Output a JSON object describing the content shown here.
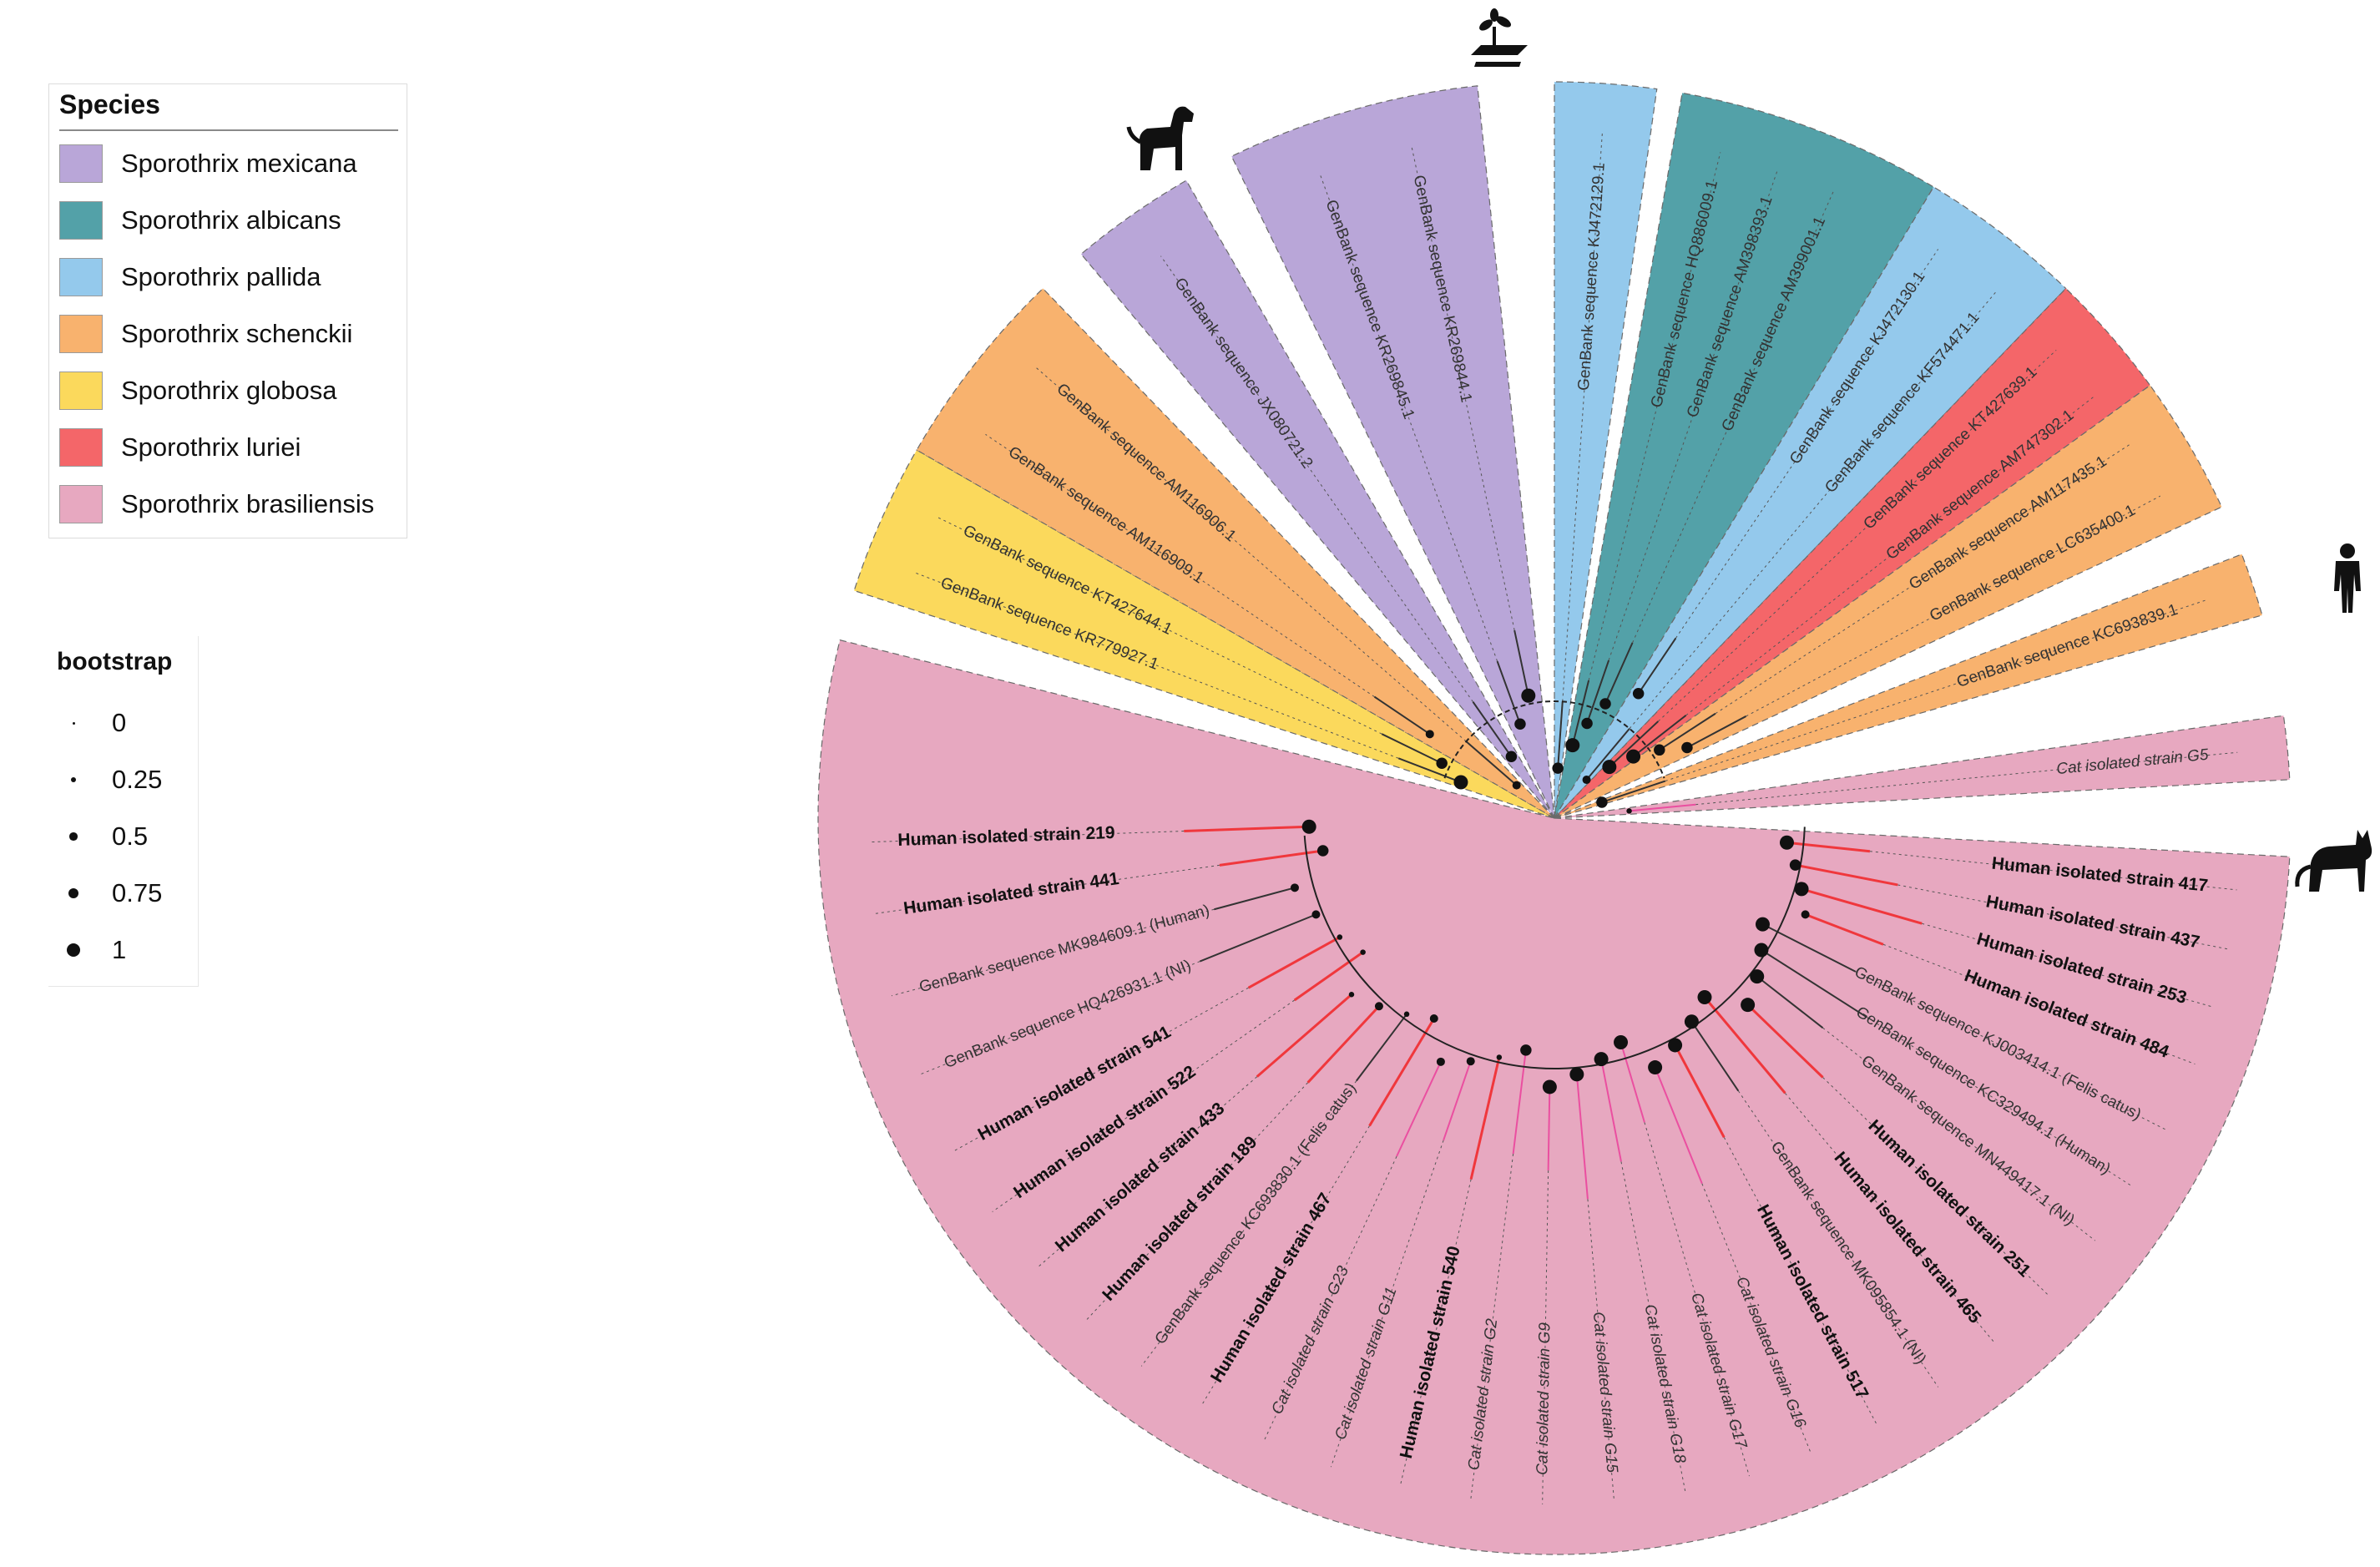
{
  "legends": {
    "species_title": "Species",
    "species": [
      {
        "label": "Sporothrix mexicana",
        "color": "#b9a6d8"
      },
      {
        "label": "Sporothrix albicans",
        "color": "#53a1a8"
      },
      {
        "label": "Sporothrix pallida",
        "color": "#94c9ec"
      },
      {
        "label": "Sporothrix schenckii",
        "color": "#f8b26e"
      },
      {
        "label": "Sporothrix globosa",
        "color": "#fbd95c"
      },
      {
        "label": "Sporothrix luriei",
        "color": "#f46669"
      },
      {
        "label": "Sporothrix brasiliensis",
        "color": "#e7a8c0"
      }
    ],
    "bootstrap_title": "bootstrap",
    "bootstrap": [
      {
        "label": "0",
        "value": 0
      },
      {
        "label": "0.25",
        "value": 0.25
      },
      {
        "label": "0.5",
        "value": 0.5
      },
      {
        "label": "0.75",
        "value": 0.75
      },
      {
        "label": "1",
        "value": 1
      }
    ]
  },
  "host_icons": [
    "plant-icon",
    "dog-icon",
    "human-icon",
    "cat-icon"
  ],
  "tree": {
    "sectors": [
      {
        "species": "Sporothrix pallida",
        "color": "#94c9ec",
        "from": -90,
        "to": -82
      },
      {
        "species": "Sporothrix albicans",
        "color": "#53a1a8",
        "from": -80,
        "to": -59
      },
      {
        "species": "Sporothrix pallida",
        "color": "#94c9ec",
        "from": -59,
        "to": -46
      },
      {
        "species": "Sporothrix luriei",
        "color": "#f46669",
        "from": -46,
        "to": -36
      },
      {
        "species": "Sporothrix schenckii",
        "color": "#f8b26e",
        "from": -36,
        "to": -25
      },
      {
        "species": "Sporothrix schenckii",
        "color": "#f8b26e",
        "from": -21,
        "to": -16
      },
      {
        "species": "Sporothrix brasiliensis",
        "color": "#e7a8c0",
        "from": -8,
        "to": -3
      },
      {
        "species": "Sporothrix brasiliensis",
        "color": "#e7a8c0",
        "from": 3,
        "to": 194
      },
      {
        "species": "Sporothrix globosa",
        "color": "#fbd95c",
        "from": 198,
        "to": 210
      },
      {
        "species": "Sporothrix schenckii",
        "color": "#f8b26e",
        "from": 210,
        "to": 226
      },
      {
        "species": "Sporothrix mexicana",
        "color": "#b9a6d8",
        "from": 230,
        "to": 240
      },
      {
        "species": "Sporothrix mexicana",
        "color": "#b9a6d8",
        "from": 244,
        "to": 264
      }
    ],
    "tips": [
      {
        "label": "GenBank sequence KJ472129.1",
        "angle": -86,
        "color": "#333333",
        "bold": false,
        "italic": false,
        "bootstrap": 0.75
      },
      {
        "label": "GenBank sequence HQ886009.1",
        "angle": -76,
        "color": "#333333",
        "bold": false,
        "italic": false,
        "bootstrap": 1
      },
      {
        "label": "GenBank sequence AM398393.1",
        "angle": -71,
        "color": "#333333",
        "bold": false,
        "italic": false,
        "bootstrap": 0.75
      },
      {
        "label": "GenBank sequence AM399001.1",
        "angle": -66,
        "color": "#333333",
        "bold": false,
        "italic": false,
        "bootstrap": 0.75
      },
      {
        "label": "GenBank sequence KJ472130.1",
        "angle": -56,
        "color": "#333333",
        "bold": false,
        "italic": false,
        "bootstrap": 0.75
      },
      {
        "label": "GenBank sequence KF574471.1",
        "angle": -50,
        "color": "#333333",
        "bold": false,
        "italic": false,
        "bootstrap": 0.5
      },
      {
        "label": "GenBank sequence KT427639.1",
        "angle": -43,
        "color": "#333333",
        "bold": false,
        "italic": false,
        "bootstrap": 1
      },
      {
        "label": "GenBank sequence AM747302.1",
        "angle": -38,
        "color": "#333333",
        "bold": false,
        "italic": false,
        "bootstrap": 1
      },
      {
        "label": "GenBank sequence AM117435.1",
        "angle": -33,
        "color": "#333333",
        "bold": false,
        "italic": false,
        "bootstrap": 0.75
      },
      {
        "label": "GenBank sequence LC635400.1",
        "angle": -28,
        "color": "#333333",
        "bold": false,
        "italic": false,
        "bootstrap": 0.75
      },
      {
        "label": "GenBank sequence KC693839.1",
        "angle": -18.5,
        "color": "#333333",
        "bold": false,
        "italic": false,
        "bootstrap": 0.75
      },
      {
        "label": "Cat isolated strain G5",
        "angle": -5.5,
        "color": "#333333",
        "bold": false,
        "italic": true,
        "bootstrap": 0.25
      },
      {
        "label": "Human isolated strain 417",
        "angle": 6,
        "color": "#111111",
        "bold": true,
        "italic": false,
        "bootstrap": 1
      },
      {
        "label": "Human isolated strain 437",
        "angle": 11,
        "color": "#111111",
        "bold": true,
        "italic": false,
        "bootstrap": 0.75
      },
      {
        "label": "Human isolated strain 253",
        "angle": 16,
        "color": "#111111",
        "bold": true,
        "italic": false,
        "bootstrap": 1
      },
      {
        "label": "Human isolated strain 484",
        "angle": 21,
        "color": "#111111",
        "bold": true,
        "italic": false,
        "bootstrap": 0.5
      },
      {
        "label": "GenBank sequence KJ003414.1 (Felis catus)",
        "angle": 27,
        "color": "#333333",
        "bold": false,
        "italic": false,
        "bootstrap": 1
      },
      {
        "label": "GenBank sequence KC329494.1 (Human)",
        "angle": 32.5,
        "color": "#333333",
        "bold": false,
        "italic": false,
        "bootstrap": 1
      },
      {
        "label": "GenBank sequence MN449417.1 (NI)",
        "angle": 38,
        "color": "#333333",
        "bold": false,
        "italic": false,
        "bootstrap": 1
      },
      {
        "label": "Human isolated strain 251",
        "angle": 44,
        "color": "#111111",
        "bold": true,
        "italic": false,
        "bootstrap": 1
      },
      {
        "label": "Human isolated strain 465",
        "angle": 50,
        "color": "#111111",
        "bold": true,
        "italic": false,
        "bootstrap": 1
      },
      {
        "label": "GenBank sequence MK095854.1 (NI)",
        "angle": 56,
        "color": "#333333",
        "bold": false,
        "italic": false,
        "bootstrap": 1
      },
      {
        "label": "Human isolated strain 517",
        "angle": 62,
        "color": "#111111",
        "bold": true,
        "italic": false,
        "bootstrap": 1
      },
      {
        "label": "Cat isolated strain G16",
        "angle": 68,
        "color": "#333333",
        "bold": false,
        "italic": true,
        "bootstrap": 1
      },
      {
        "label": "Cat isolated strain G17",
        "angle": 73.5,
        "color": "#333333",
        "bold": false,
        "italic": true,
        "bootstrap": 1
      },
      {
        "label": "Cat isolated strain G18",
        "angle": 79,
        "color": "#333333",
        "bold": false,
        "italic": true,
        "bootstrap": 1
      },
      {
        "label": "Cat isolated strain G15",
        "angle": 85,
        "color": "#333333",
        "bold": false,
        "italic": true,
        "bootstrap": 1
      },
      {
        "label": "Cat isolated strain G9",
        "angle": 91,
        "color": "#333333",
        "bold": false,
        "italic": true,
        "bootstrap": 1
      },
      {
        "label": "Cat isolated strain G2",
        "angle": 97,
        "color": "#333333",
        "bold": false,
        "italic": true,
        "bootstrap": 0.75
      },
      {
        "label": "Human isolated strain 540",
        "angle": 103,
        "color": "#111111",
        "bold": true,
        "italic": false,
        "bootstrap": 0.25
      },
      {
        "label": "Cat isolated strain G11",
        "angle": 109,
        "color": "#333333",
        "bold": false,
        "italic": true,
        "bootstrap": 0.5
      },
      {
        "label": "Cat isolated strain G23",
        "angle": 115,
        "color": "#333333",
        "bold": false,
        "italic": true,
        "bootstrap": 0.5
      },
      {
        "label": "Human isolated strain 467",
        "angle": 121,
        "color": "#111111",
        "bold": true,
        "italic": false,
        "bootstrap": 0.5
      },
      {
        "label": "GenBank sequence KC693830.1 (Felis catus)",
        "angle": 127,
        "color": "#333333",
        "bold": false,
        "italic": false,
        "bootstrap": 0.25
      },
      {
        "label": "Human isolated strain 189",
        "angle": 133,
        "color": "#111111",
        "bold": true,
        "italic": false,
        "bootstrap": 0.5
      },
      {
        "label": "Human isolated strain 433",
        "angle": 139,
        "color": "#111111",
        "bold": true,
        "italic": false,
        "bootstrap": 0.25
      },
      {
        "label": "Human isolated strain 522",
        "angle": 145,
        "color": "#111111",
        "bold": true,
        "italic": false,
        "bootstrap": 0.25
      },
      {
        "label": "Human isolated strain 541",
        "angle": 151,
        "color": "#111111",
        "bold": true,
        "italic": false,
        "bootstrap": 0.25
      },
      {
        "label": "GenBank sequence HQ426931.1 (NI)",
        "angle": 158,
        "color": "#333333",
        "bold": false,
        "italic": false,
        "bootstrap": 0.5
      },
      {
        "label": "GenBank sequence MK984609.1 (Human)",
        "angle": 165,
        "color": "#333333",
        "bold": false,
        "italic": false,
        "bootstrap": 0.5
      },
      {
        "label": "Human isolated strain 441",
        "angle": 172,
        "color": "#111111",
        "bold": true,
        "italic": false,
        "bootstrap": 0.75
      },
      {
        "label": "Human isolated strain 219",
        "angle": 178,
        "color": "#111111",
        "bold": true,
        "italic": false,
        "bootstrap": 1
      },
      {
        "label": "GenBank sequence KR779927.1",
        "angle": 201,
        "color": "#333333",
        "bold": false,
        "italic": false,
        "bootstrap": 1
      },
      {
        "label": "GenBank sequence KT427644.1",
        "angle": 206,
        "color": "#333333",
        "bold": false,
        "italic": false,
        "bootstrap": 0.75
      },
      {
        "label": "GenBank sequence AM116909.1",
        "angle": 214,
        "color": "#333333",
        "bold": false,
        "italic": false,
        "bootstrap": 0.5
      },
      {
        "label": "GenBank sequence AM116906.1",
        "angle": 221,
        "color": "#333333",
        "bold": false,
        "italic": false,
        "bootstrap": 0.5
      },
      {
        "label": "GenBank sequence JX080721.2",
        "angle": 235,
        "color": "#333333",
        "bold": false,
        "italic": false,
        "bootstrap": 0.75
      },
      {
        "label": "GenBank sequence KR269845.1",
        "angle": 250,
        "color": "#333333",
        "bold": false,
        "italic": false,
        "bootstrap": 0.75
      },
      {
        "label": "GenBank sequence KR269844.1",
        "angle": 258,
        "color": "#333333",
        "bold": false,
        "italic": false,
        "bootstrap": 1
      }
    ]
  }
}
